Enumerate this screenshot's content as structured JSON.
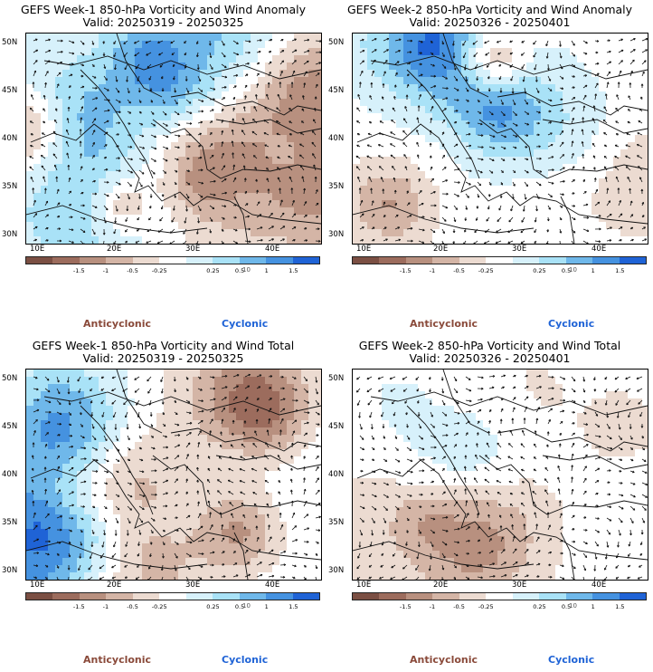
{
  "panels": [
    {
      "title": "GEFS Week-1 850-hPa Vorticity and Wind Anomaly",
      "valid": "Valid: 20250319 - 20250325",
      "seed": 11,
      "blue_bias": 0.1
    },
    {
      "title": "GEFS Week-2 850-hPa Vorticity and Wind Anomaly",
      "valid": "Valid: 20250326 - 20250401",
      "seed": 23,
      "blue_bias": -0.05
    },
    {
      "title": "GEFS Week-1 850-hPa Vorticity and Wind Total",
      "valid": "Valid: 20250319 - 20250325",
      "seed": 37,
      "blue_bias": 0.05
    },
    {
      "title": "GEFS Week-2 850-hPa Vorticity and Wind Total",
      "valid": "Valid: 20250326 - 20250401",
      "seed": 51,
      "blue_bias": 0.0
    }
  ],
  "lat_labels": [
    "50N",
    "45N",
    "40N",
    "35N",
    "30N"
  ],
  "lon_labels": [
    "10E",
    "20E",
    "30E",
    "40E"
  ],
  "colorbar": {
    "colors": [
      "#7b4f43",
      "#9c6c5d",
      "#b8907f",
      "#d4b5a6",
      "#ecdbd1",
      "#ffffff",
      "#d7f1fb",
      "#a9e2f7",
      "#6fb8ea",
      "#4592e0",
      "#1f63d6"
    ],
    "labels": [
      "-1.5",
      "-1",
      "-0.5",
      "-0.25",
      "0.25",
      "0.5",
      "1",
      "1.5"
    ],
    "unit": "10"
  },
  "legend": {
    "anticyclonic": "Anticyclonic",
    "cyclonic": "Cyclonic"
  }
}
